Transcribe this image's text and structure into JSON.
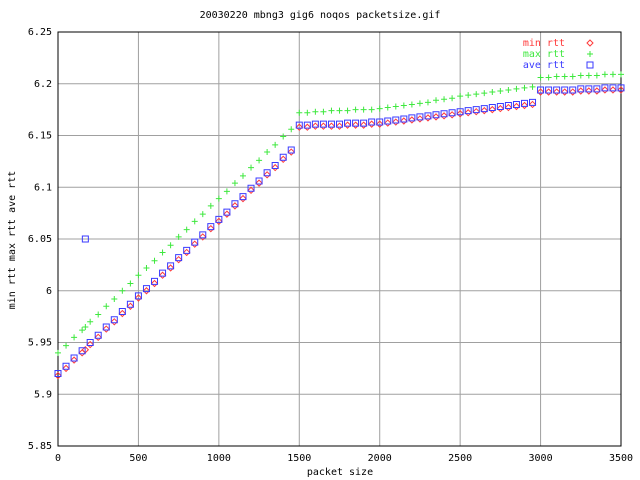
{
  "chart_data": {
    "type": "scatter",
    "title": "20030220 mbng3 gig6 noqos packetsize.gif",
    "x_label": "packet size",
    "y_label": "min rtt max rtt ave rtt",
    "xlim": [
      0,
      3500
    ],
    "xticks": [
      0,
      500,
      1000,
      1500,
      2000,
      2500,
      3000,
      3500
    ],
    "ylim": [
      5.85,
      6.25
    ],
    "yticks": [
      5.85,
      5.9,
      5.95,
      6,
      6.05,
      6.1,
      6.15,
      6.2,
      6.25
    ],
    "grid": true,
    "legend": "top-right",
    "x": [
      0,
      50,
      100,
      150,
      170,
      200,
      250,
      300,
      350,
      400,
      450,
      500,
      550,
      600,
      650,
      700,
      750,
      800,
      850,
      900,
      950,
      1000,
      1050,
      1100,
      1150,
      1200,
      1250,
      1300,
      1350,
      1400,
      1450,
      1500,
      1550,
      1600,
      1650,
      1700,
      1750,
      1800,
      1850,
      1900,
      1950,
      2000,
      2050,
      2100,
      2150,
      2200,
      2250,
      2300,
      2350,
      2400,
      2450,
      2500,
      2550,
      2600,
      2650,
      2700,
      2750,
      2800,
      2850,
      2900,
      2950,
      3000,
      3050,
      3100,
      3150,
      3200,
      3250,
      3300,
      3350,
      3400,
      3450,
      3500
    ],
    "series": [
      {
        "name": "min rtt",
        "color": "#ff3a3a",
        "marker": "diamond",
        "values": [
          5.918,
          5.925,
          5.933,
          5.94,
          5.943,
          5.948,
          5.955,
          5.963,
          5.97,
          5.978,
          5.985,
          5.993,
          6.0,
          6.007,
          6.015,
          6.022,
          6.03,
          6.037,
          6.045,
          6.052,
          6.06,
          6.067,
          6.074,
          6.082,
          6.089,
          6.097,
          6.104,
          6.112,
          6.119,
          6.127,
          6.134,
          6.158,
          6.158,
          6.159,
          6.159,
          6.159,
          6.159,
          6.16,
          6.16,
          6.16,
          6.161,
          6.161,
          6.162,
          6.163,
          6.164,
          6.165,
          6.166,
          6.167,
          6.168,
          6.169,
          6.17,
          6.171,
          6.172,
          6.173,
          6.174,
          6.175,
          6.176,
          6.177,
          6.178,
          6.179,
          6.18,
          6.192,
          6.192,
          6.192,
          6.192,
          6.192,
          6.193,
          6.193,
          6.193,
          6.194,
          6.194,
          6.194
        ]
      },
      {
        "name": "max rtt",
        "color": "#3ee83e",
        "marker": "plus",
        "values": [
          5.94,
          5.947,
          5.955,
          5.962,
          5.965,
          5.97,
          5.977,
          5.985,
          5.992,
          6.0,
          6.007,
          6.015,
          6.022,
          6.029,
          6.037,
          6.044,
          6.052,
          6.059,
          6.067,
          6.074,
          6.082,
          6.089,
          6.096,
          6.104,
          6.111,
          6.119,
          6.126,
          6.134,
          6.141,
          6.149,
          6.156,
          6.172,
          6.172,
          6.173,
          6.173,
          6.174,
          6.174,
          6.174,
          6.175,
          6.175,
          6.175,
          6.176,
          6.177,
          6.178,
          6.179,
          6.18,
          6.181,
          6.182,
          6.184,
          6.185,
          6.186,
          6.188,
          6.189,
          6.19,
          6.191,
          6.192,
          6.193,
          6.194,
          6.195,
          6.196,
          6.197,
          6.206,
          6.206,
          6.207,
          6.207,
          6.207,
          6.208,
          6.208,
          6.208,
          6.209,
          6.209,
          6.209
        ]
      },
      {
        "name": "ave rtt",
        "color": "#3a3aff",
        "marker": "square",
        "values": [
          5.92,
          5.927,
          5.935,
          5.942,
          6.05,
          5.95,
          5.957,
          5.965,
          5.972,
          5.98,
          5.987,
          5.995,
          6.002,
          6.009,
          6.017,
          6.024,
          6.032,
          6.039,
          6.047,
          6.054,
          6.062,
          6.069,
          6.076,
          6.084,
          6.091,
          6.099,
          6.106,
          6.114,
          6.121,
          6.129,
          6.136,
          6.16,
          6.16,
          6.161,
          6.161,
          6.161,
          6.161,
          6.162,
          6.162,
          6.162,
          6.163,
          6.163,
          6.164,
          6.165,
          6.166,
          6.167,
          6.168,
          6.169,
          6.17,
          6.171,
          6.172,
          6.173,
          6.174,
          6.175,
          6.176,
          6.177,
          6.178,
          6.179,
          6.18,
          6.181,
          6.182,
          6.194,
          6.194,
          6.194,
          6.194,
          6.194,
          6.195,
          6.195,
          6.195,
          6.196,
          6.196,
          6.196
        ]
      }
    ]
  }
}
